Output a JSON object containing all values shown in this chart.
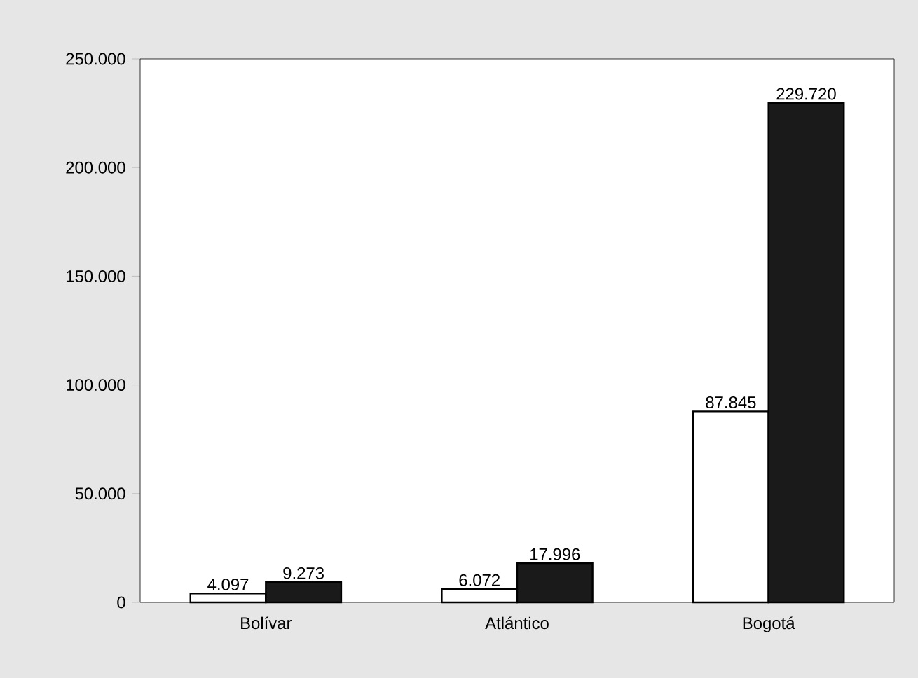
{
  "chart_data": {
    "type": "bar",
    "categories": [
      "Bolívar",
      "Atlántico",
      "Bogotá"
    ],
    "series": [
      {
        "color": "#ffffff",
        "values": [
          4097,
          6072,
          87845
        ],
        "value_labels": [
          "4.097",
          "6.072",
          "87.845"
        ]
      },
      {
        "color": "#1a1a1a",
        "values": [
          9273,
          17996,
          229720
        ],
        "value_labels": [
          "9.273",
          "17.996",
          "229.720"
        ]
      }
    ],
    "ylim": [
      0,
      250000
    ],
    "yticks": [
      {
        "value": 0,
        "label": "0"
      },
      {
        "value": 50000,
        "label": "50.000"
      },
      {
        "value": 100000,
        "label": "100.000"
      },
      {
        "value": 150000,
        "label": "150.000"
      },
      {
        "value": 200000,
        "label": "200.000"
      },
      {
        "value": 250000,
        "label": "250.000"
      }
    ],
    "grid": false
  }
}
